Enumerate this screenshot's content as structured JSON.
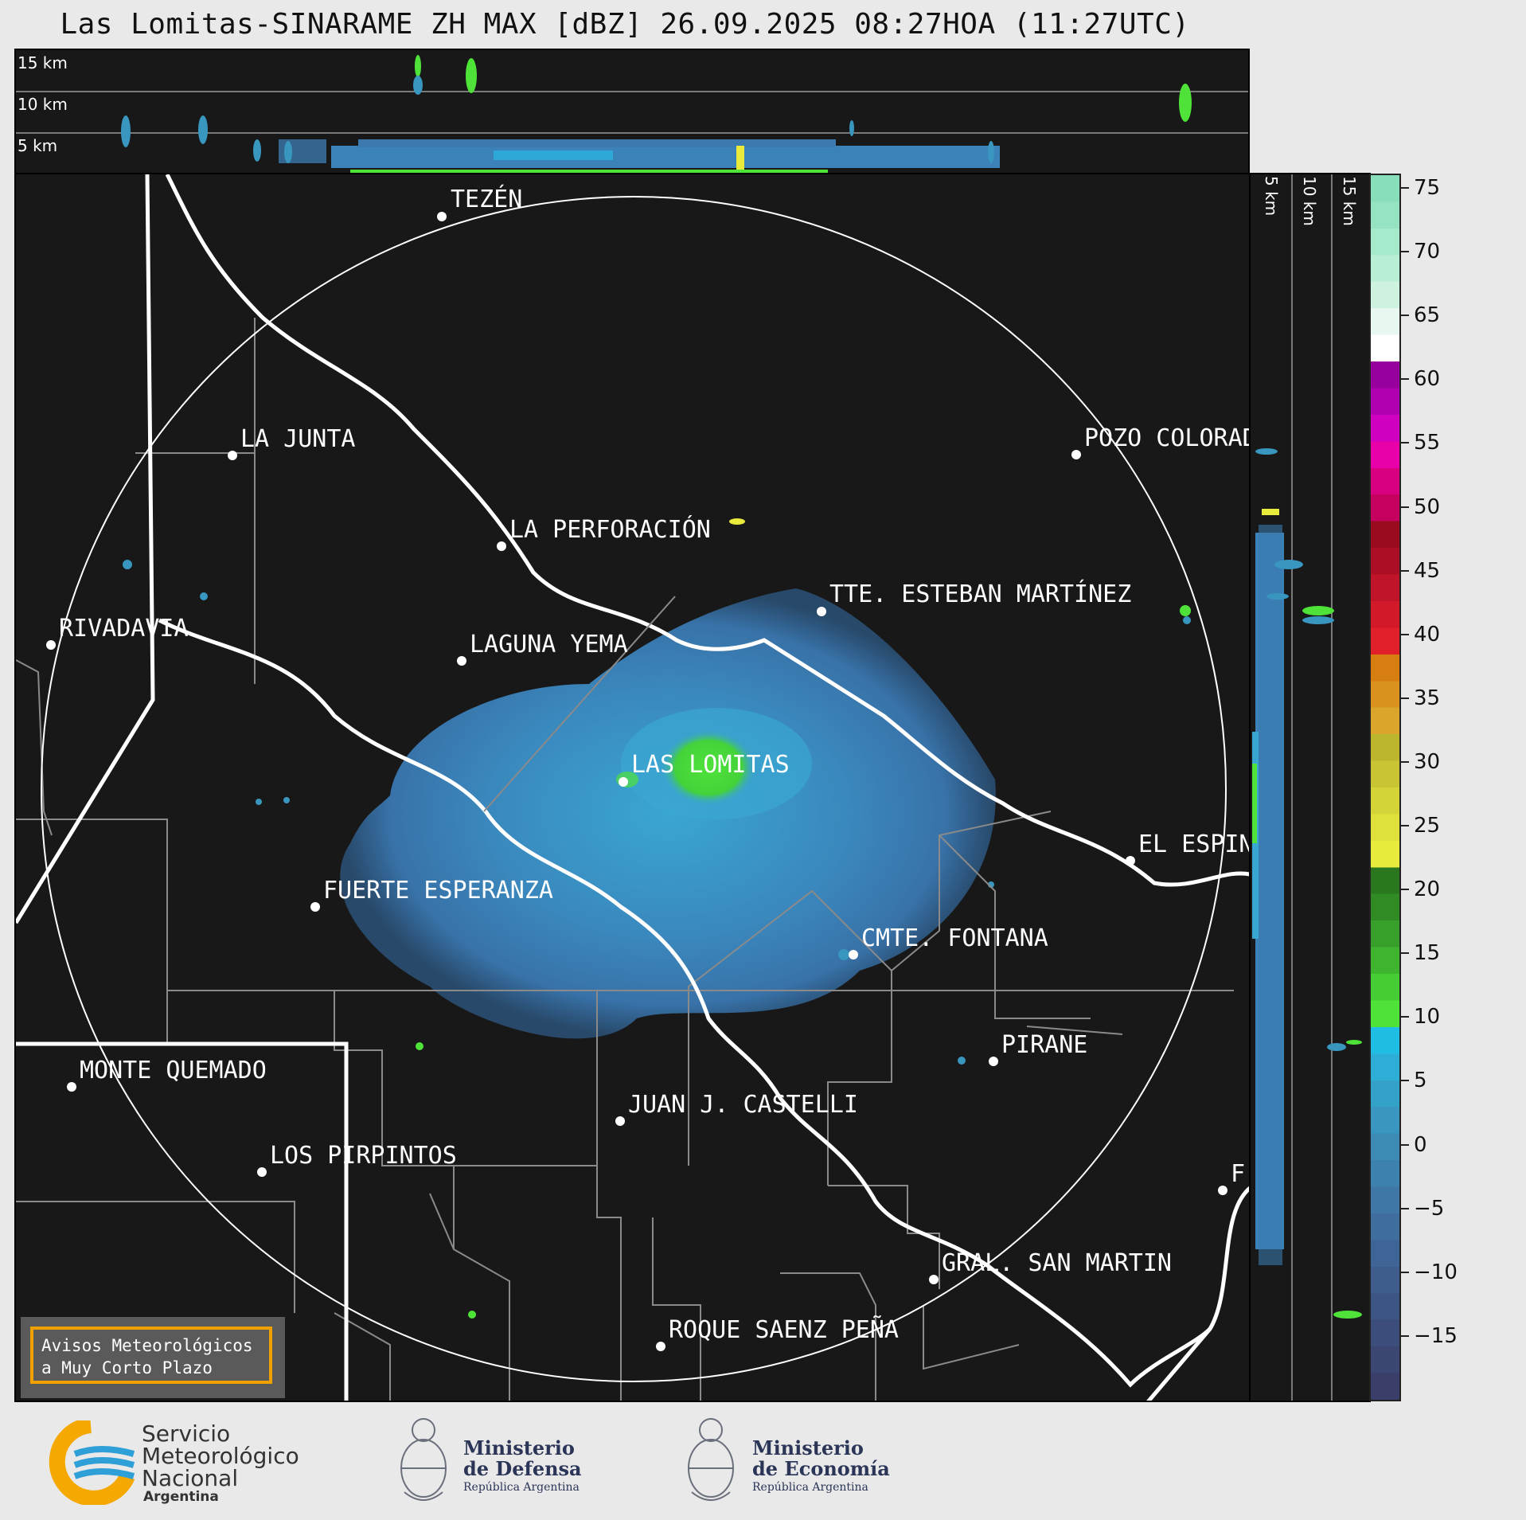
{
  "title": "Las Lomitas-SINARAME ZH MAX [dBZ] 26.09.2025 08:27HOA (11:27UTC)",
  "top_panel": {
    "height_labels": [
      "15 km",
      "10 km",
      "5 km"
    ]
  },
  "side_panel": {
    "height_labels": [
      "5 km",
      "10 km",
      "15 km"
    ]
  },
  "cities": [
    {
      "name": "TEZÉN"
    },
    {
      "name": "LA JUNTA"
    },
    {
      "name": "POZO COLORAD"
    },
    {
      "name": "LA PERFORACIÓN"
    },
    {
      "name": "TTE. ESTEBAN MARTÍNEZ"
    },
    {
      "name": "RIVADAVIA"
    },
    {
      "name": "LAGUNA YEMA"
    },
    {
      "name": "LAS LOMITAS"
    },
    {
      "name": "EL ESPIN"
    },
    {
      "name": "FUERTE ESPERANZA"
    },
    {
      "name": "CMTE. FONTANA"
    },
    {
      "name": "PIRANE"
    },
    {
      "name": "MONTE QUEMADO"
    },
    {
      "name": "JUAN J. CASTELLI"
    },
    {
      "name": "LOS PIRPINTOS"
    },
    {
      "name": "F"
    },
    {
      "name": "GRAL. SAN MARTIN"
    },
    {
      "name": "ROQUE SAENZ PEÑA"
    }
  ],
  "colorbar": {
    "unit": "dBZ",
    "tick_labels": [
      "75",
      "70",
      "65",
      "60",
      "55",
      "50",
      "45",
      "40",
      "35",
      "30",
      "25",
      "20",
      "15",
      "10",
      "5",
      "0",
      "−5",
      "−10",
      "−15"
    ],
    "range": [
      -20,
      76
    ],
    "colors": [
      "#3a3f6a",
      "#3b4673",
      "#3c4d7b",
      "#3d5584",
      "#3e5d8d",
      "#3f6596",
      "#3f6e9e",
      "#3f77a6",
      "#3d81ae",
      "#3b8bb6",
      "#3896bf",
      "#34a2c8",
      "#2eaed6",
      "#1fbde4",
      "#4fe33a",
      "#46cc34",
      "#3fb52f",
      "#38a02a",
      "#318b25",
      "#2a7720",
      "#e8ea3c",
      "#dfe03a",
      "#d4d337",
      "#c8c433",
      "#bcb62f",
      "#dba52c",
      "#d9921d",
      "#d67e12",
      "#e22029",
      "#d1192a",
      "#c0142a",
      "#ac0f25",
      "#9a0b1f",
      "#c6005f",
      "#d8007f",
      "#e800a8",
      "#d000c0",
      "#b000b0",
      "#98009e",
      "#ffffff",
      "#e8f8f0",
      "#cdf2e0",
      "#b8eed5",
      "#a6e9cc",
      "#96e3c3",
      "#88ddbb"
    ]
  },
  "aviso": {
    "line1": "Avisos Meteorológicos",
    "line2": "a Muy Corto Plazo"
  },
  "logos": {
    "smn": {
      "line1": "Servicio",
      "line2": "Meteorológico",
      "line3": "Nacional",
      "line4": "Argentina"
    },
    "defensa": {
      "line1": "Ministerio",
      "line2": "de Defensa",
      "line3": "República Argentina"
    },
    "economia": {
      "line1": "Ministerio",
      "line2": "de Economía",
      "line3": "República Argentina"
    }
  }
}
